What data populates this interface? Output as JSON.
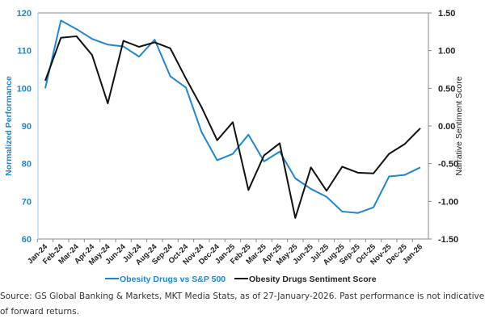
{
  "chart_data": {
    "type": "line",
    "categories": [
      "Jan-24",
      "Feb-24",
      "Mar-24",
      "Apr-24",
      "May-24",
      "Jun-24",
      "Jul-24",
      "Aug-24",
      "Sep-24",
      "Oct-24",
      "Nov-24",
      "Dec-24",
      "Jan-25",
      "Feb-25",
      "Mar-25",
      "Apr-25",
      "May-25",
      "Jun-25",
      "Jul-25",
      "Aug-25",
      "Sep-25",
      "Oct-25",
      "Nov-25",
      "Dec-25",
      "Jan-26"
    ],
    "ylabel": "Normalized Performance",
    "y2label": "Narrative Sentiment Score",
    "ylim": [
      60,
      120
    ],
    "y2lim": [
      -1.5,
      1.5
    ],
    "yticks": [
      "60",
      "70",
      "80",
      "90",
      "100",
      "110",
      "120"
    ],
    "y2ticks": [
      "-1.50",
      "-1.00",
      "-0.50",
      "0.00",
      "0.50",
      "1.00",
      "1.50"
    ],
    "legend_position": "bottom",
    "series": [
      {
        "name": "Obesity Drugs vs S&P 500",
        "axis": "left",
        "color": "#1f86d0",
        "values": [
          100,
          118,
          115.7,
          113.1,
          111.6,
          111.1,
          108.4,
          112.9,
          103.2,
          100.2,
          88.4,
          80.9,
          82.6,
          87.7,
          80.6,
          83.2,
          76.1,
          73.3,
          71.2,
          67.3,
          66.9,
          68.4,
          76.6,
          77,
          79
        ]
      },
      {
        "name": "Obesity Drugs Sentiment Score",
        "axis": "right",
        "color": "#111111",
        "values": [
          0.6,
          1.17,
          1.19,
          0.94,
          0.3,
          1.13,
          1.05,
          1.11,
          1.03,
          0.63,
          0.25,
          -0.19,
          0.05,
          -0.85,
          -0.39,
          -0.23,
          -1.22,
          -0.55,
          -0.86,
          -0.54,
          -0.62,
          -0.63,
          -0.37,
          -0.24,
          -0.03
        ]
      }
    ]
  },
  "source_note": "Source: GS Global Banking & Markets, MKT Media Stats, as of 27-January-2026. Past performance is not indicative of forward returns."
}
